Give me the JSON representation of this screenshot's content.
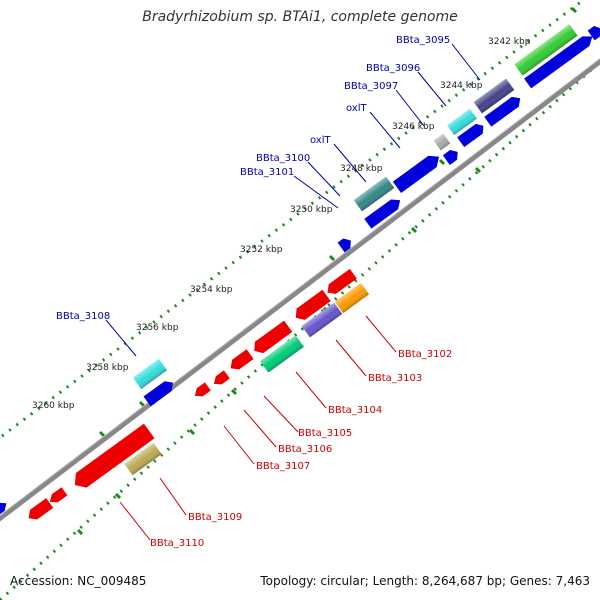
{
  "title": "Bradyrhizobium sp. BTAi1, complete genome",
  "footer": {
    "accession": "Accession: NC_009485",
    "summary": "Topology: circular; Length: 8,264,687 bp; Genes: 7,463"
  },
  "scale_labels": [
    "3242 kbp",
    "3244 kbp",
    "3246 kbp",
    "3248 kbp",
    "3250 kbp",
    "3252 kbp",
    "3254 kbp",
    "3256 kbp",
    "3258 kbp",
    "3260 kbp"
  ],
  "gene_labels": [
    {
      "id": "bbta3095",
      "text": "BBta_3095",
      "strand": "forward"
    },
    {
      "id": "bbta3096",
      "text": "BBta_3096",
      "strand": "forward"
    },
    {
      "id": "bbta3097",
      "text": "BBta_3097",
      "strand": "forward"
    },
    {
      "id": "oxit-1",
      "text": "oxlT",
      "strand": "forward"
    },
    {
      "id": "oxit-2",
      "text": "oxlT",
      "strand": "forward"
    },
    {
      "id": "bbta3100",
      "text": "BBta_3100",
      "strand": "forward"
    },
    {
      "id": "bbta3101",
      "text": "BBta_3101",
      "strand": "forward"
    },
    {
      "id": "bbta3108",
      "text": "BBta_3108",
      "strand": "forward"
    },
    {
      "id": "bbta3102",
      "text": "BBta_3102",
      "strand": "reverse"
    },
    {
      "id": "bbta3103",
      "text": "BBta_3103",
      "strand": "reverse"
    },
    {
      "id": "bbta3104",
      "text": "BBta_3104",
      "strand": "reverse"
    },
    {
      "id": "bbta3105",
      "text": "BBta_3105",
      "strand": "reverse"
    },
    {
      "id": "bbta3106",
      "text": "BBta_3106",
      "strand": "reverse"
    },
    {
      "id": "bbta3107",
      "text": "BBta_3107",
      "strand": "reverse"
    },
    {
      "id": "bbta3109",
      "text": "BBta_3109",
      "strand": "reverse"
    },
    {
      "id": "bbta3110",
      "text": "BBta_3110",
      "strand": "reverse"
    }
  ],
  "colors": {
    "forward_cds": "#0000dd",
    "reverse_cds": "#ee0000",
    "forward_label": "#0000aa",
    "reverse_label": "#cc0000",
    "backbone": "#888888",
    "ticks": "#1a8a1a",
    "feature_colors": [
      "#33cc33",
      "#444488",
      "#33dddd",
      "#aaaaaa",
      "#338888",
      "#ff9900",
      "#6655cc",
      "#00cc77",
      "#bbaa55"
    ]
  }
}
